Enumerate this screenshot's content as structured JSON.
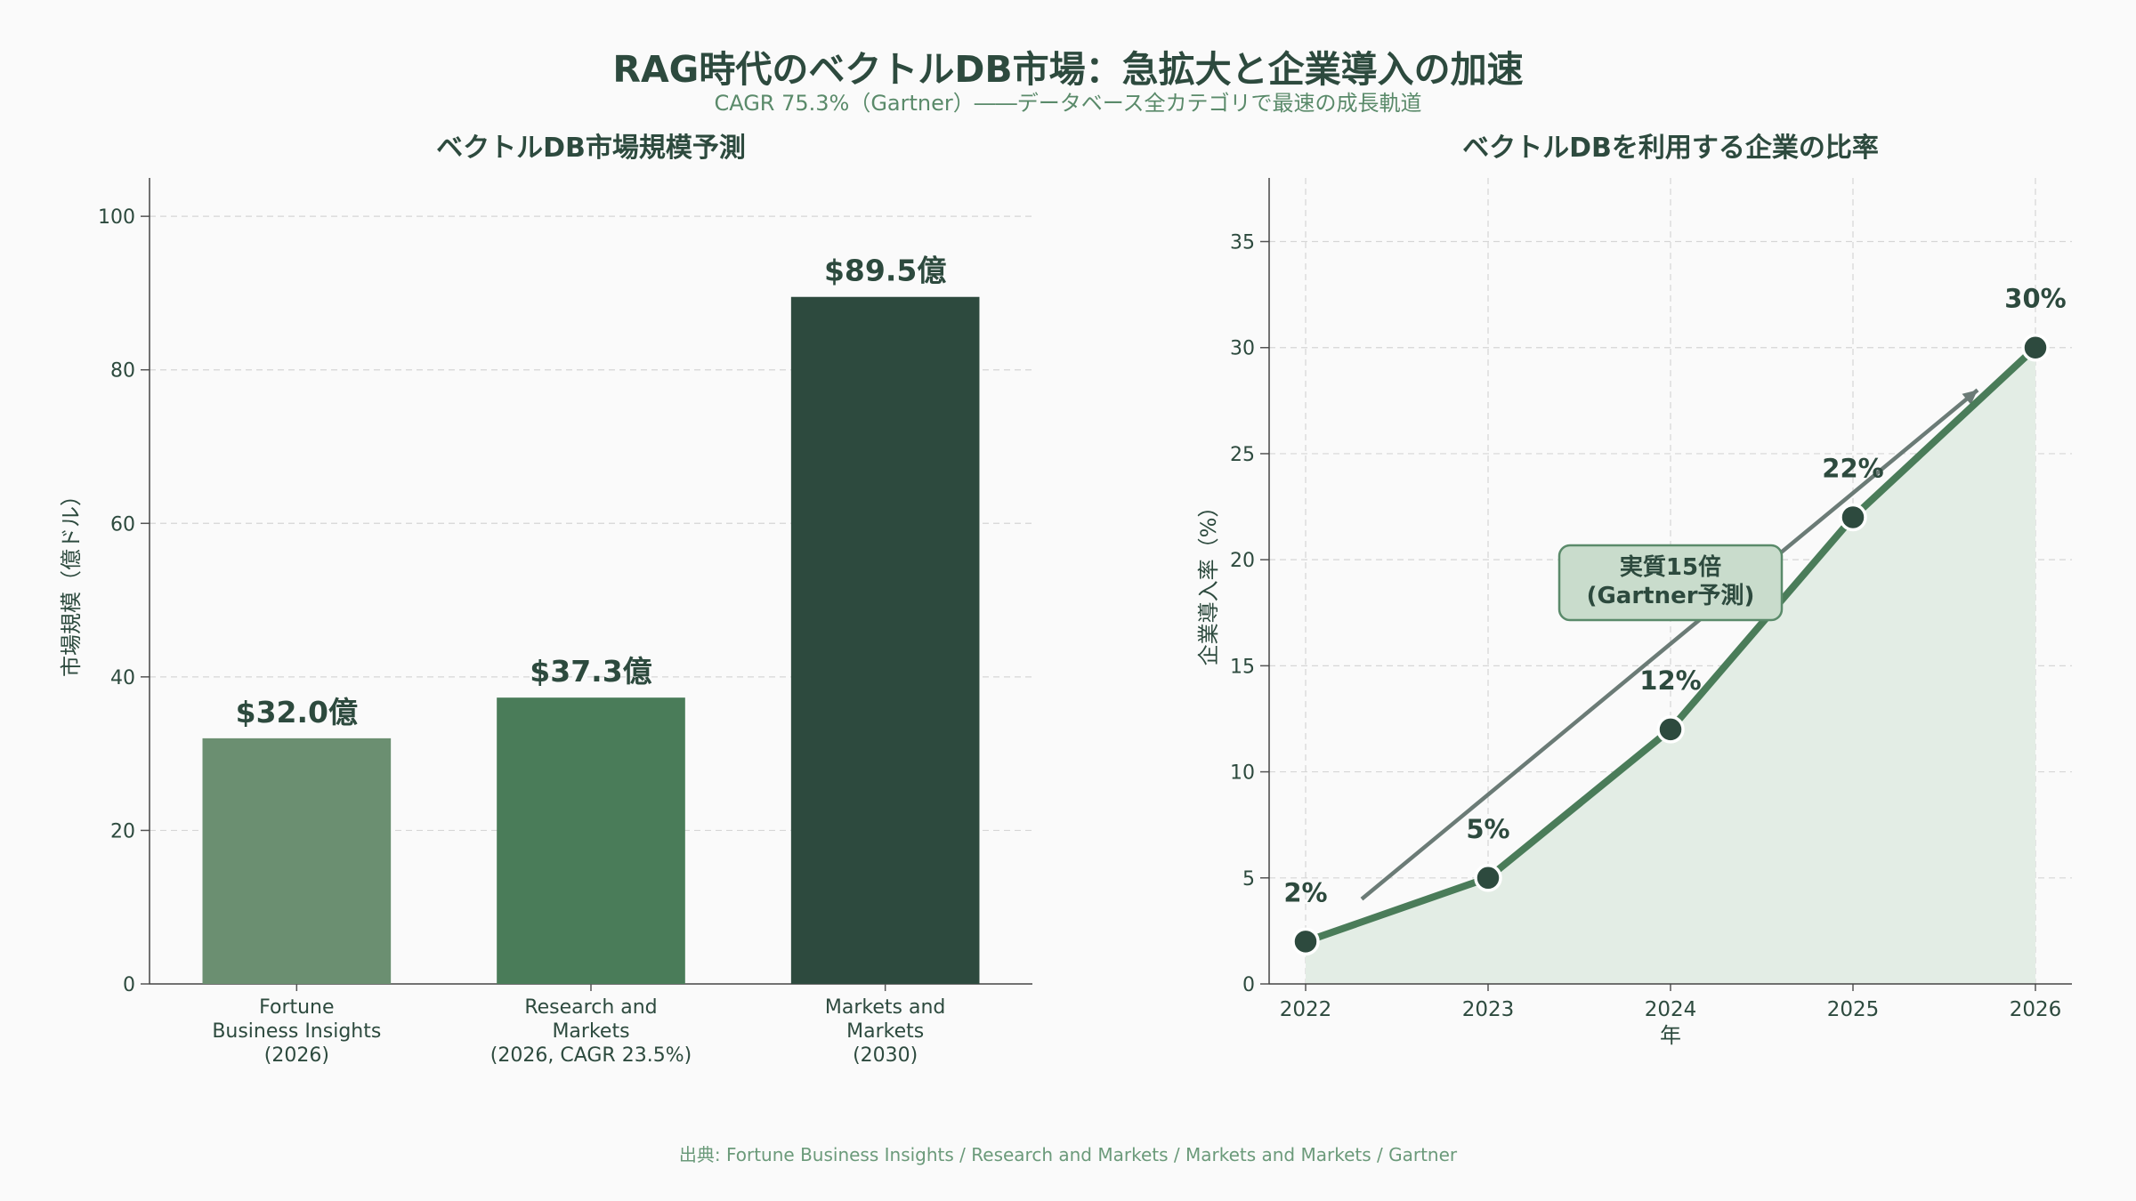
{
  "title": "RAG時代のベクトルDB市場：急拡大と企業導入の加速",
  "subtitle": "CAGR 75.3%（Gartner）――データベース全カテゴリで最速の成長軌道",
  "source": "出典: Fortune Business Insights / Research and Markets / Markets and Markets / Gartner",
  "colors": {
    "bar1": "#6b8f71",
    "bar2": "#4a7c59",
    "bar3": "#2d4a3e",
    "line": "#4a7c59",
    "marker": "#2d4a3e",
    "area": "#e3ede5",
    "trend": "#6b7b76",
    "callout_bg": "#c9dccc",
    "callout_border": "#5a8a6a",
    "grid": "#d6d6d6",
    "text": "#2d4a3e"
  },
  "chart_data": [
    {
      "type": "bar",
      "title": "ベクトルDB市場規模予測",
      "ylabel": "市場規模（億ドル）",
      "xlabel": "",
      "ylim": [
        0,
        105
      ],
      "yticks": [
        0,
        20,
        40,
        60,
        80,
        100
      ],
      "grid": true,
      "categories": [
        [
          "Fortune",
          "Business Insights",
          "(2026)"
        ],
        [
          "Research and",
          "Markets",
          "(2026, CAGR 23.5%)"
        ],
        [
          "Markets and",
          "Markets",
          "(2030)"
        ]
      ],
      "values": [
        32.0,
        37.3,
        89.5
      ],
      "labels": [
        "$32.0億",
        "$37.3億",
        "$89.5億"
      ]
    },
    {
      "type": "line",
      "title": "ベクトルDBを利用する企業の比率",
      "ylabel": "企業導入率（%）",
      "xlabel": "年",
      "ylim": [
        0,
        38
      ],
      "yticks": [
        0,
        5,
        10,
        15,
        20,
        25,
        30,
        35
      ],
      "grid": true,
      "x": [
        "2022",
        "2023",
        "2024",
        "2025",
        "2026"
      ],
      "values": [
        2,
        5,
        12,
        22,
        30
      ],
      "labels": [
        "2%",
        "5%",
        "12%",
        "22%",
        "30%"
      ],
      "annotation": {
        "lines": [
          "実質15倍",
          "(Gartner予測)"
        ]
      }
    }
  ]
}
